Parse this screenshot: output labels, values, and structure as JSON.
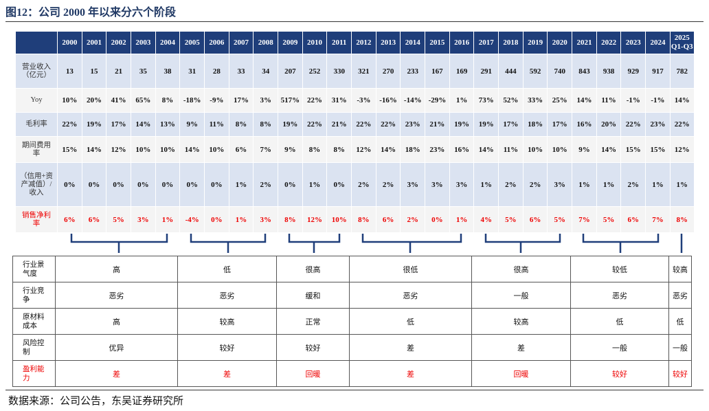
{
  "title": "图12：公司 2000 年以来分六个阶段",
  "top_table": {
    "columns": [
      "2000",
      "2001",
      "2002",
      "2003",
      "2004",
      "2005",
      "2006",
      "2007",
      "2008",
      "2009",
      "2010",
      "2011",
      "2012",
      "2013",
      "2014",
      "2015",
      "2016",
      "2017",
      "2018",
      "2019",
      "2020",
      "2021",
      "2022",
      "2023",
      "2024",
      "2025 Q1-Q3"
    ],
    "rows": [
      {
        "label": "营业收入（亿元）",
        "values": [
          "13",
          "15",
          "21",
          "35",
          "38",
          "31",
          "28",
          "33",
          "34",
          "207",
          "252",
          "330",
          "321",
          "270",
          "233",
          "167",
          "169",
          "291",
          "444",
          "592",
          "740",
          "843",
          "938",
          "929",
          "917",
          "782"
        ]
      },
      {
        "label": "Yoy",
        "values": [
          "10%",
          "20%",
          "41%",
          "65%",
          "8%",
          "-18%",
          "-9%",
          "17%",
          "3%",
          "517%",
          "22%",
          "31%",
          "-3%",
          "-16%",
          "-14%",
          "-29%",
          "1%",
          "73%",
          "52%",
          "33%",
          "25%",
          "14%",
          "11%",
          "-1%",
          "-1%",
          "14%"
        ]
      },
      {
        "label": "毛利率",
        "values": [
          "22%",
          "19%",
          "17%",
          "14%",
          "13%",
          "9%",
          "11%",
          "8%",
          "8%",
          "19%",
          "22%",
          "21%",
          "22%",
          "22%",
          "23%",
          "21%",
          "19%",
          "19%",
          "17%",
          "18%",
          "17%",
          "16%",
          "20%",
          "22%",
          "23%",
          "22%"
        ]
      },
      {
        "label": "期间费用率",
        "values": [
          "15%",
          "14%",
          "12%",
          "10%",
          "10%",
          "14%",
          "10%",
          "6%",
          "7%",
          "9%",
          "8%",
          "8%",
          "12%",
          "14%",
          "18%",
          "23%",
          "16%",
          "14%",
          "11%",
          "10%",
          "10%",
          "9%",
          "14%",
          "15%",
          "15%",
          "12%"
        ]
      },
      {
        "label": "（信用+资产减值）/收入",
        "values": [
          "0%",
          "0%",
          "0%",
          "0%",
          "0%",
          "0%",
          "0%",
          "1%",
          "2%",
          "0%",
          "1%",
          "0%",
          "2%",
          "2%",
          "3%",
          "3%",
          "3%",
          "1%",
          "2%",
          "2%",
          "3%",
          "1%",
          "1%",
          "2%",
          "1%",
          "1%"
        ]
      },
      {
        "label": "销售净利率",
        "values": [
          "6%",
          "6%",
          "5%",
          "3%",
          "1%",
          "-4%",
          "0%",
          "1%",
          "3%",
          "8%",
          "12%",
          "10%",
          "8%",
          "6%",
          "2%",
          "0%",
          "1%",
          "4%",
          "5%",
          "6%",
          "5%",
          "7%",
          "5%",
          "6%",
          "7%",
          "8%"
        ]
      }
    ]
  },
  "bottom_table": {
    "rows": [
      {
        "label": "行业景气度",
        "cells": [
          "高",
          "低",
          "很高",
          "很低",
          "很高",
          "较低",
          "较高"
        ]
      },
      {
        "label": "行业竞争",
        "cells": [
          "恶劣",
          "恶劣",
          "缓和",
          "恶劣",
          "一般",
          "恶劣",
          "恶劣"
        ]
      },
      {
        "label": "原材料成本",
        "cells": [
          "高",
          "较高",
          "正常",
          "低",
          "较高",
          "低",
          "低"
        ]
      },
      {
        "label": "风险控制",
        "cells": [
          "优异",
          "较好",
          "较好",
          "差",
          "差",
          "一般",
          "一般"
        ]
      },
      {
        "label": "盈利能力",
        "cells": [
          "差",
          "差",
          "回暖",
          "差",
          "回暖",
          "较好",
          "较好"
        ]
      }
    ]
  },
  "source": "数据来源：公司公告，东吴证券研究所"
}
